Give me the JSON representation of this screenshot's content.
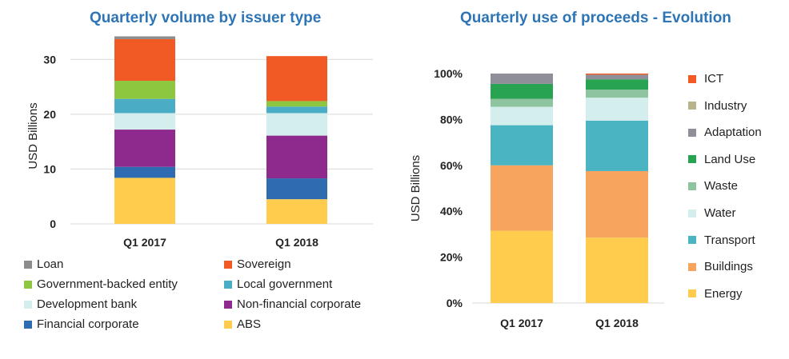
{
  "colors": {
    "title": "#2e75b6",
    "grid": "#d9d9d9",
    "Loan": "#8c8c8c",
    "Sovereign": "#f15a24",
    "Government-backed entity": "#8dc63f",
    "Local government": "#4bacc6",
    "Development bank": "#d4eeed",
    "Non-financial corporate": "#8e2a8e",
    "Financial corporate": "#2e6bb0",
    "ABS": "#ffcc4d",
    "ICT": "#f15a24",
    "Industry": "#b7b48a",
    "Adaptation": "#8f8f99",
    "Land Use": "#27a352",
    "Waste": "#8fc4a0",
    "Water": "#d4eeed",
    "Transport": "#4bb4c3",
    "Buildings": "#f7a55e",
    "Energy": "#ffcc4d"
  },
  "chart_data": [
    {
      "type": "bar",
      "stacked": true,
      "title": "Quarterly volume by issuer type",
      "ylabel": "USD Billions",
      "xlabel": "",
      "ylim": [
        0,
        35
      ],
      "yticks": [
        0,
        10,
        20,
        30
      ],
      "grid": true,
      "legend_position": "bottom",
      "categories": [
        "Q1 2017",
        "Q1 2018"
      ],
      "series": [
        {
          "name": "ABS",
          "values": [
            8.4,
            4.5
          ]
        },
        {
          "name": "Financial corporate",
          "values": [
            2.0,
            3.8
          ]
        },
        {
          "name": "Non-financial corporate",
          "values": [
            6.8,
            7.8
          ]
        },
        {
          "name": "Development bank",
          "values": [
            3.0,
            4.1
          ]
        },
        {
          "name": "Local government",
          "values": [
            2.6,
            1.2
          ]
        },
        {
          "name": "Government-backed entity",
          "values": [
            3.3,
            1.0
          ]
        },
        {
          "name": "Sovereign",
          "values": [
            7.6,
            8.2
          ]
        },
        {
          "name": "Loan",
          "values": [
            0.5,
            0.0
          ]
        }
      ],
      "legend_order": [
        "Loan",
        "Sovereign",
        "Government-backed entity",
        "Local government",
        "Development bank",
        "Non-financial corporate",
        "Financial corporate",
        "ABS"
      ]
    },
    {
      "type": "bar",
      "stacked": true,
      "percent": true,
      "title": "Quarterly use of proceeds - Evolution",
      "ylabel": "USD Billions",
      "xlabel": "",
      "ylim": [
        0,
        100
      ],
      "yticks": [
        "0%",
        "20%",
        "40%",
        "60%",
        "80%",
        "100%"
      ],
      "grid": false,
      "legend_position": "right",
      "categories": [
        "Q1 2017",
        "Q1 2018"
      ],
      "series": [
        {
          "name": "Energy",
          "values": [
            31.5,
            28.5
          ]
        },
        {
          "name": "Buildings",
          "values": [
            28.5,
            29.0
          ]
        },
        {
          "name": "Transport",
          "values": [
            17.5,
            22.0
          ]
        },
        {
          "name": "Water",
          "values": [
            8.0,
            10.0
          ]
        },
        {
          "name": "Waste",
          "values": [
            3.5,
            3.5
          ]
        },
        {
          "name": "Land Use",
          "values": [
            6.5,
            4.5
          ]
        },
        {
          "name": "Adaptation",
          "values": [
            4.5,
            2.0
          ]
        },
        {
          "name": "Industry",
          "values": [
            0.0,
            0.0
          ]
        },
        {
          "name": "ICT",
          "values": [
            0.0,
            0.5
          ]
        }
      ],
      "legend_order": [
        "ICT",
        "Industry",
        "Adaptation",
        "Land Use",
        "Waste",
        "Water",
        "Transport",
        "Buildings",
        "Energy"
      ]
    }
  ]
}
